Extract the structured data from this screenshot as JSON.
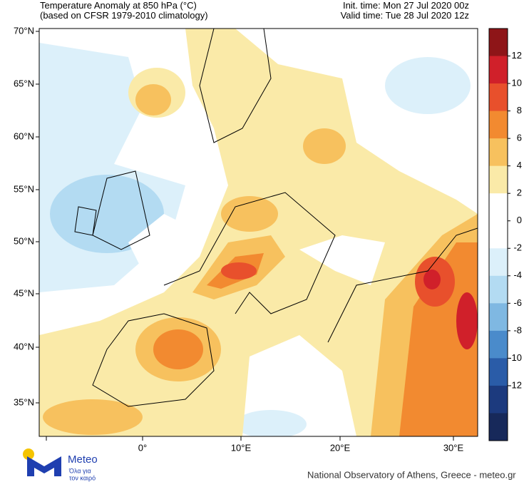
{
  "header": {
    "title_lines": [
      "Temperature Anomaly at 850 hPa (°C)",
      "(based on CFSR 1979-2010 climatology)"
    ],
    "init_time": "Init. time: Mon 27 Jul 2020 00z",
    "valid_time": "Valid time: Tue 28 Jul 2020 12z"
  },
  "map": {
    "lat_labels": [
      "70°N",
      "65°N",
      "60°N",
      "55°N",
      "50°N",
      "45°N",
      "40°N",
      "35°N"
    ],
    "lon_labels": [
      "0°",
      "10°E",
      "20°E",
      "30°E"
    ]
  },
  "colorbar": {
    "colors": [
      "#8e1518",
      "#d0202a",
      "#e8502c",
      "#f28a30",
      "#f7c15e",
      "#faeaa8",
      "#ffffff",
      "#ffffff",
      "#dcf0fa",
      "#b3dbf2",
      "#7fb8e2",
      "#4a8bcb",
      "#2a5ca8",
      "#1c3a7e",
      "#17295a"
    ],
    "labels": [
      "12",
      "10",
      "8",
      "6",
      "4",
      "2",
      "0",
      "-2",
      "-4",
      "-6",
      "-8",
      "-10",
      "-12"
    ]
  },
  "logo": {
    "name": "Meteo",
    "tagline_lines": [
      "Όλα για",
      "τον καιρό"
    ]
  },
  "footer": "National Observatory of Athens, Greece - meteo.gr"
}
